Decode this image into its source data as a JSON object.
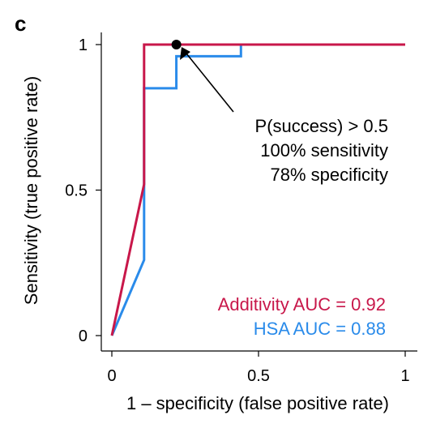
{
  "panel_label": "c",
  "chart_data": {
    "type": "line",
    "xlabel": "1 – specificity (false positive rate)",
    "ylabel": "Sensitivity (true positive rate)",
    "xlim": [
      0,
      1
    ],
    "ylim": [
      0,
      1
    ],
    "x_ticks": [
      0,
      0.5,
      1
    ],
    "x_tick_labels": [
      "0",
      "0.5",
      "1"
    ],
    "y_ticks": [
      0,
      0.5,
      1
    ],
    "y_tick_labels": [
      "0",
      "0.5",
      "1"
    ],
    "grid": false,
    "series": [
      {
        "name": "HSA AUC = 0.88",
        "color": "#2a8bea",
        "x": [
          0,
          0.11,
          0.11,
          0.22,
          0.22,
          0.44,
          0.44,
          1.0
        ],
        "y": [
          0,
          0.26,
          0.85,
          0.85,
          0.96,
          0.96,
          1.0,
          1.0
        ]
      },
      {
        "name": "Additivity AUC = 0.92",
        "color": "#c8174a",
        "x": [
          0,
          0.11,
          0.11,
          1.0
        ],
        "y": [
          0,
          0.52,
          1.0,
          1.0
        ]
      }
    ],
    "highlight_point": {
      "x": 0.22,
      "y": 1.0,
      "color": "#000000"
    },
    "annotation": {
      "lines": [
        "P(success) > 0.5",
        "100% sensitivity",
        "78% specificity"
      ]
    },
    "legend": {
      "placement": "bottom-right",
      "entries": [
        {
          "label": "Additivity AUC = 0.92",
          "color": "#c8174a"
        },
        {
          "label": "HSA AUC = 0.88",
          "color": "#2a8bea"
        }
      ]
    }
  }
}
